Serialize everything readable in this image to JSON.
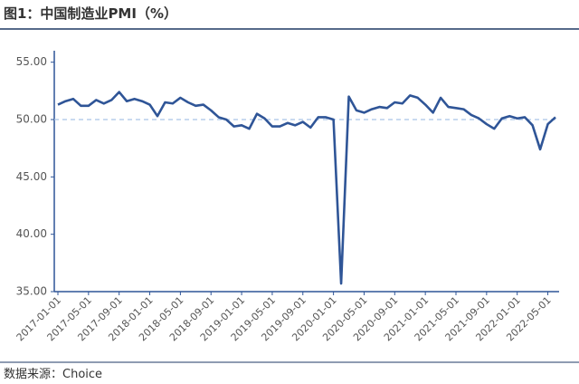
{
  "chart_data": {
    "type": "line",
    "title": "图1：中国制造业PMI（%）",
    "source": "数据来源：Choice",
    "categories": [
      "2017-01-01",
      null,
      null,
      null,
      "2017-05-01",
      null,
      null,
      null,
      "2017-09-01",
      null,
      null,
      null,
      "2018-01-01",
      null,
      null,
      null,
      "2018-05-01",
      null,
      null,
      null,
      "2018-09-01",
      null,
      null,
      null,
      "2019-01-01",
      null,
      null,
      null,
      "2019-05-01",
      null,
      null,
      null,
      "2019-09-01",
      null,
      null,
      null,
      "2020-01-01",
      null,
      null,
      null,
      "2020-05-01",
      null,
      null,
      null,
      "2020-09-01",
      null,
      null,
      null,
      "2021-01-01",
      null,
      null,
      null,
      "2021-05-01",
      null,
      null,
      null,
      "2021-09-01",
      null,
      null,
      null,
      "2022-01-01",
      null,
      null,
      null,
      "2022-05-01",
      null
    ],
    "series": [
      {
        "name": "PMI",
        "color": "#2f5597",
        "values": [
          51.3,
          51.6,
          51.8,
          51.2,
          51.2,
          51.7,
          51.4,
          51.7,
          52.4,
          51.6,
          51.8,
          51.6,
          51.3,
          50.3,
          51.5,
          51.4,
          51.9,
          51.5,
          51.2,
          51.3,
          50.8,
          50.2,
          50.0,
          49.4,
          49.5,
          49.2,
          50.5,
          50.1,
          49.4,
          49.4,
          49.7,
          49.5,
          49.8,
          49.3,
          50.2,
          50.2,
          50.0,
          35.7,
          52.0,
          50.8,
          50.6,
          50.9,
          51.1,
          51.0,
          51.5,
          51.4,
          52.1,
          51.9,
          51.3,
          50.6,
          51.9,
          51.1,
          51.0,
          50.9,
          50.4,
          50.1,
          49.6,
          49.2,
          50.1,
          50.3,
          50.1,
          50.2,
          49.5,
          47.4,
          49.6,
          50.2
        ]
      }
    ],
    "reference_line": {
      "value": 50,
      "color": "#a9c4e6"
    },
    "ylim": [
      35,
      56
    ],
    "yticks": [
      {
        "value": 35,
        "label": "35.00"
      },
      {
        "value": 40,
        "label": "40.00"
      },
      {
        "value": 45,
        "label": "45.00"
      },
      {
        "value": 50,
        "label": "50.00"
      },
      {
        "value": 55,
        "label": "55.00"
      }
    ],
    "grid": false
  }
}
